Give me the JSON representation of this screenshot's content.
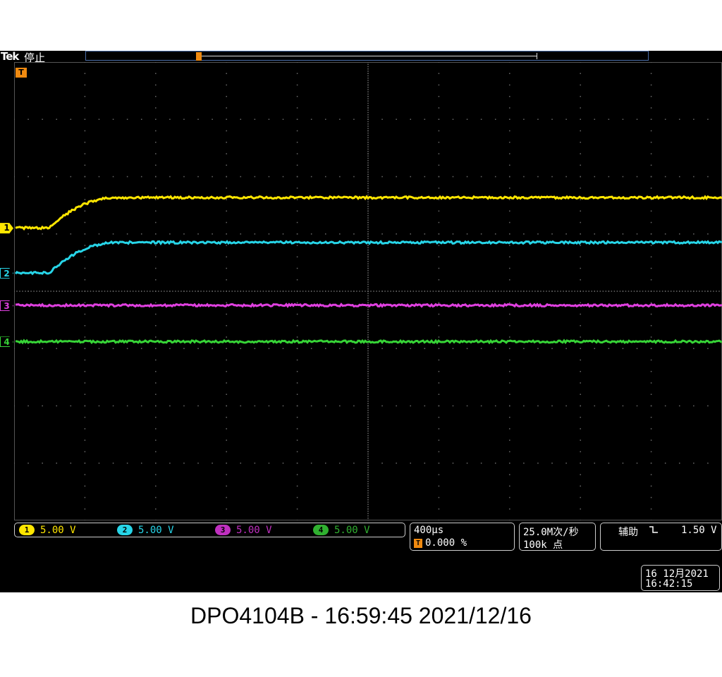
{
  "scope": {
    "brand": "Tek",
    "state": "停止",
    "trigger_marker": "T"
  },
  "channels": [
    {
      "id": "1",
      "scale": "5.00 V",
      "color": "#ffe600",
      "marker_level": 0.327
    },
    {
      "id": "2",
      "scale": "5.00 V",
      "color": "#27d5e8",
      "marker_level": 0.41
    },
    {
      "id": "3",
      "scale": "5.00 V",
      "color": "#e040e0",
      "marker_level": 0.47
    },
    {
      "id": "4",
      "scale": "5.00 V",
      "color": "#37d437",
      "marker_level": 0.537
    }
  ],
  "horizontal": {
    "timebase": "400µs",
    "trigger_position": "0.000 %"
  },
  "acquisition": {
    "sample_rate": "25.0M次/秒",
    "record_length": "100k 点"
  },
  "trigger": {
    "source": "辅助",
    "slope_icon": "falling-edge-icon",
    "level": "1.50 V"
  },
  "datetime": {
    "date": "16 12月2021",
    "time": "16:42:15"
  },
  "footer": {
    "caption": "DPO4104B - 16:59:45   2021/12/16"
  }
}
